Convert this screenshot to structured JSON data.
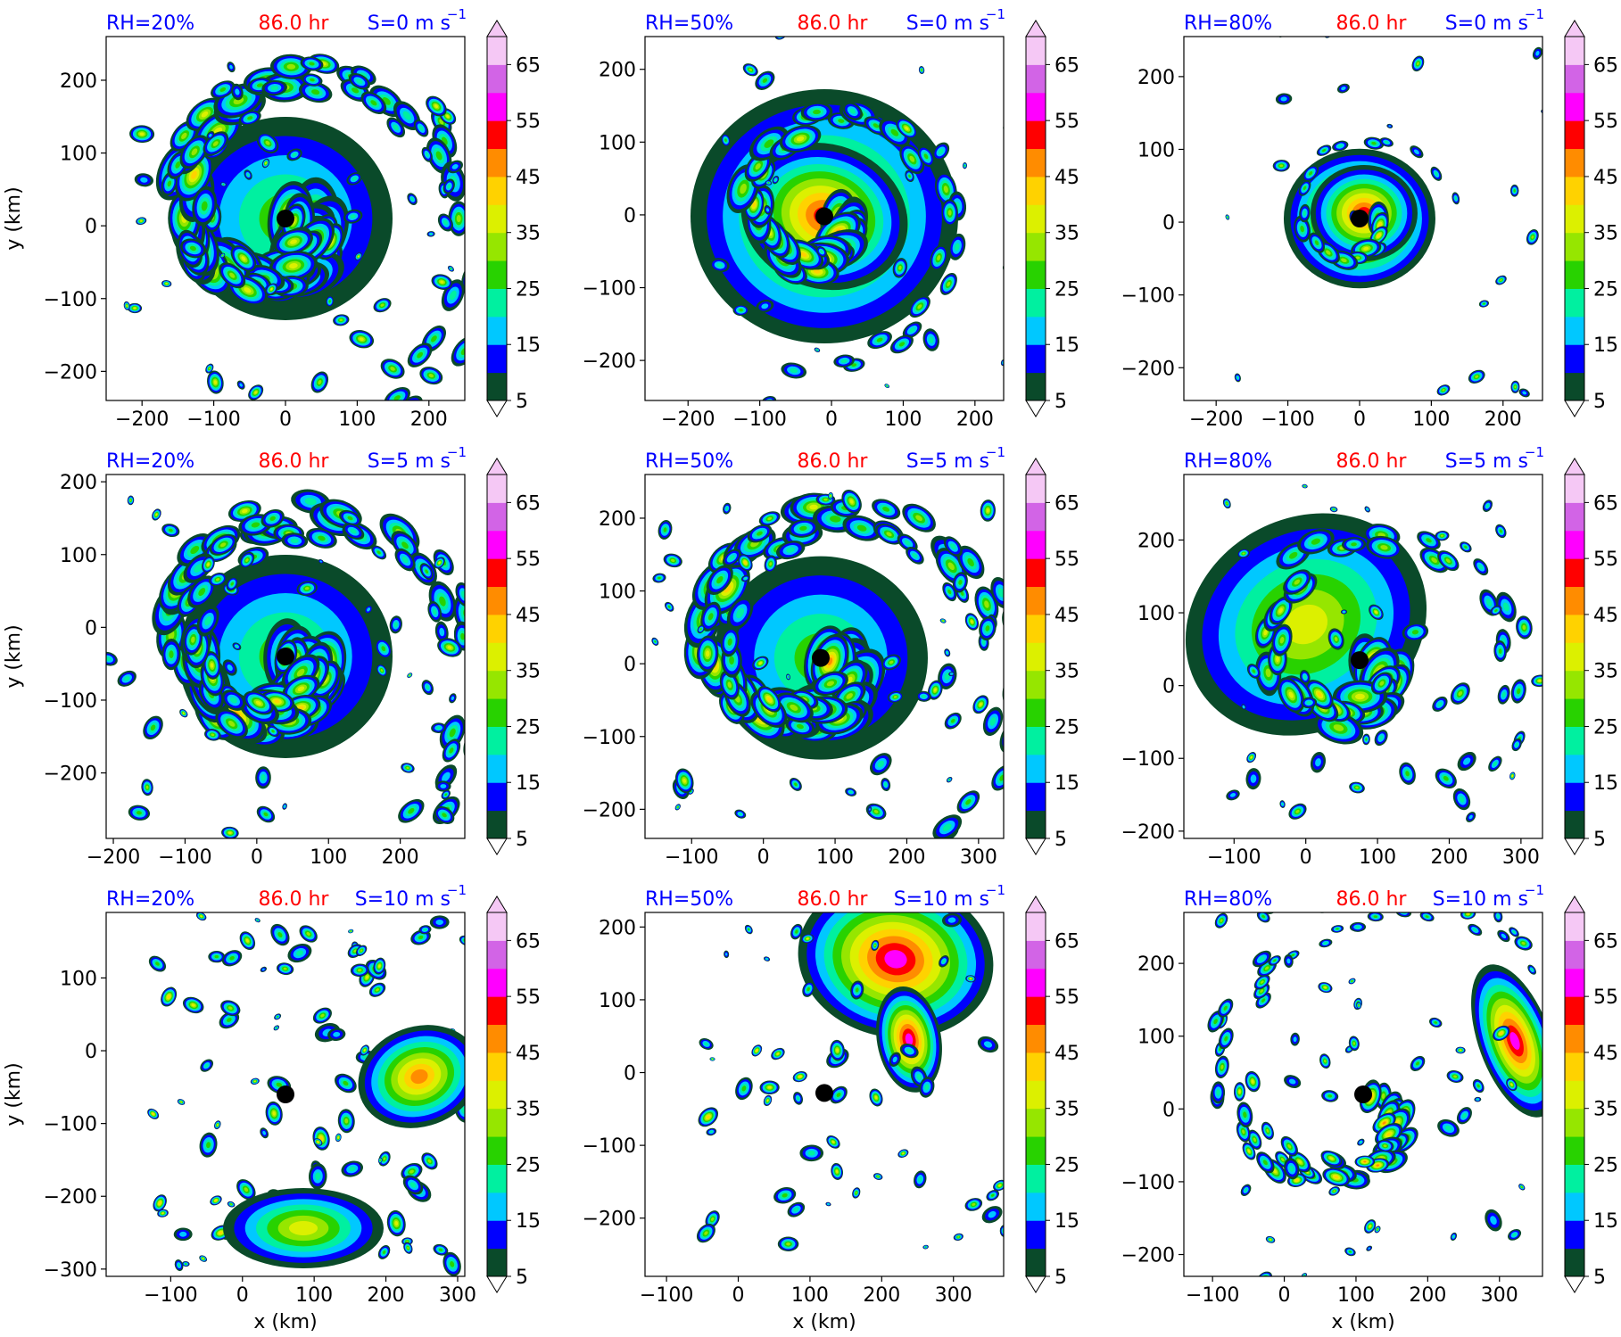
{
  "figure": {
    "xlabel": "x (km)",
    "ylabel": "y (km)"
  },
  "colorbar": {
    "levels": [
      5,
      10,
      15,
      20,
      25,
      30,
      35,
      40,
      45,
      50,
      55,
      60,
      65,
      70
    ],
    "tick_labels": [
      "5",
      "15",
      "25",
      "35",
      "45",
      "55",
      "65"
    ],
    "colors": [
      "#0a4a2a",
      "#0000ff",
      "#00c8ff",
      "#00f0a0",
      "#28d200",
      "#96e600",
      "#dcf000",
      "#ffd200",
      "#ff8c00",
      "#ff0000",
      "#ff00ff",
      "#d264e6",
      "#f5c8f5"
    ],
    "extend": "both"
  },
  "chart_data": [
    {
      "type": "heatmap",
      "rh": "RH=20%",
      "time": "86.0 hr",
      "shear": "S=0 m s",
      "shear_exp": "−1",
      "xlim": [
        -250,
        250
      ],
      "ylim": [
        -240,
        260
      ],
      "xticks": [
        -200,
        -100,
        0,
        100,
        200
      ],
      "yticks": [
        -200,
        -100,
        0,
        100,
        200
      ],
      "center": [
        0,
        10
      ],
      "pattern": "spiral-large",
      "show_xlabel": false,
      "show_ylabel": true
    },
    {
      "type": "heatmap",
      "rh": "RH=50%",
      "time": "86.0 hr",
      "shear": "S=0 m s",
      "shear_exp": "−1",
      "xlim": [
        -260,
        240
      ],
      "ylim": [
        -255,
        245
      ],
      "xticks": [
        -200,
        -100,
        0,
        100,
        200
      ],
      "yticks": [
        -200,
        -100,
        0,
        100,
        200
      ],
      "center": [
        -10,
        -2
      ],
      "pattern": "spiral-mid",
      "show_xlabel": false,
      "show_ylabel": false
    },
    {
      "type": "heatmap",
      "rh": "RH=80%",
      "time": "86.0 hr",
      "shear": "S=0 m s",
      "shear_exp": "−1",
      "xlim": [
        -245,
        255
      ],
      "ylim": [
        -245,
        255
      ],
      "xticks": [
        -200,
        -100,
        0,
        100,
        200
      ],
      "yticks": [
        -200,
        -100,
        0,
        100,
        200
      ],
      "center": [
        0,
        5
      ],
      "pattern": "compact",
      "show_xlabel": false,
      "show_ylabel": false
    },
    {
      "type": "heatmap",
      "rh": "RH=20%",
      "time": "86.0 hr",
      "shear": "S=5 m s",
      "shear_exp": "−1",
      "xlim": [
        -210,
        290
      ],
      "ylim": [
        -290,
        210
      ],
      "xticks": [
        -200,
        -100,
        0,
        100,
        200
      ],
      "yticks": [
        -200,
        -100,
        0,
        100,
        200
      ],
      "center": [
        40,
        -40
      ],
      "pattern": "spiral-large",
      "show_xlabel": false,
      "show_ylabel": true
    },
    {
      "type": "heatmap",
      "rh": "RH=50%",
      "time": "86.0 hr",
      "shear": "S=5 m s",
      "shear_exp": "−1",
      "xlim": [
        -165,
        335
      ],
      "ylim": [
        -240,
        260
      ],
      "xticks": [
        -100,
        0,
        100,
        200,
        300
      ],
      "yticks": [
        -200,
        -100,
        0,
        100,
        200
      ],
      "center": [
        80,
        8
      ],
      "pattern": "spiral-large",
      "show_xlabel": false,
      "show_ylabel": false
    },
    {
      "type": "heatmap",
      "rh": "RH=80%",
      "time": "86.0 hr",
      "shear": "S=5 m s",
      "shear_exp": "−1",
      "xlim": [
        -170,
        330
      ],
      "ylim": [
        -210,
        290
      ],
      "xticks": [
        -100,
        0,
        100,
        200,
        300
      ],
      "yticks": [
        -200,
        -100,
        0,
        100,
        200
      ],
      "center": [
        75,
        35
      ],
      "pattern": "sheared",
      "show_xlabel": false,
      "show_ylabel": false
    },
    {
      "type": "heatmap",
      "rh": "RH=20%",
      "time": "86.0 hr",
      "shear": "S=10 m s",
      "shear_exp": "−1",
      "xlim": [
        -190,
        310
      ],
      "ylim": [
        -310,
        190
      ],
      "xticks": [
        -100,
        0,
        100,
        200,
        300
      ],
      "yticks": [
        -300,
        -200,
        -100,
        0,
        100
      ],
      "center": [
        60,
        -60
      ],
      "pattern": "scattered",
      "show_xlabel": true,
      "show_ylabel": true
    },
    {
      "type": "heatmap",
      "rh": "RH=50%",
      "time": "86.0 hr",
      "shear": "S=10 m s",
      "shear_exp": "−1",
      "xlim": [
        -130,
        370
      ],
      "ylim": [
        -280,
        220
      ],
      "xticks": [
        -100,
        0,
        100,
        200,
        300
      ],
      "yticks": [
        -200,
        -100,
        0,
        100,
        200
      ],
      "center": [
        120,
        -28
      ],
      "pattern": "plume",
      "show_xlabel": true,
      "show_ylabel": false
    },
    {
      "type": "heatmap",
      "rh": "RH=80%",
      "time": "86.0 hr",
      "shear": "S=10 m s",
      "shear_exp": "−1",
      "xlim": [
        -140,
        360
      ],
      "ylim": [
        -230,
        270
      ],
      "xticks": [
        -100,
        0,
        100,
        200,
        300
      ],
      "yticks": [
        -200,
        -100,
        0,
        100,
        200
      ],
      "center": [
        110,
        20
      ],
      "pattern": "bands-east",
      "show_xlabel": true,
      "show_ylabel": false
    }
  ]
}
